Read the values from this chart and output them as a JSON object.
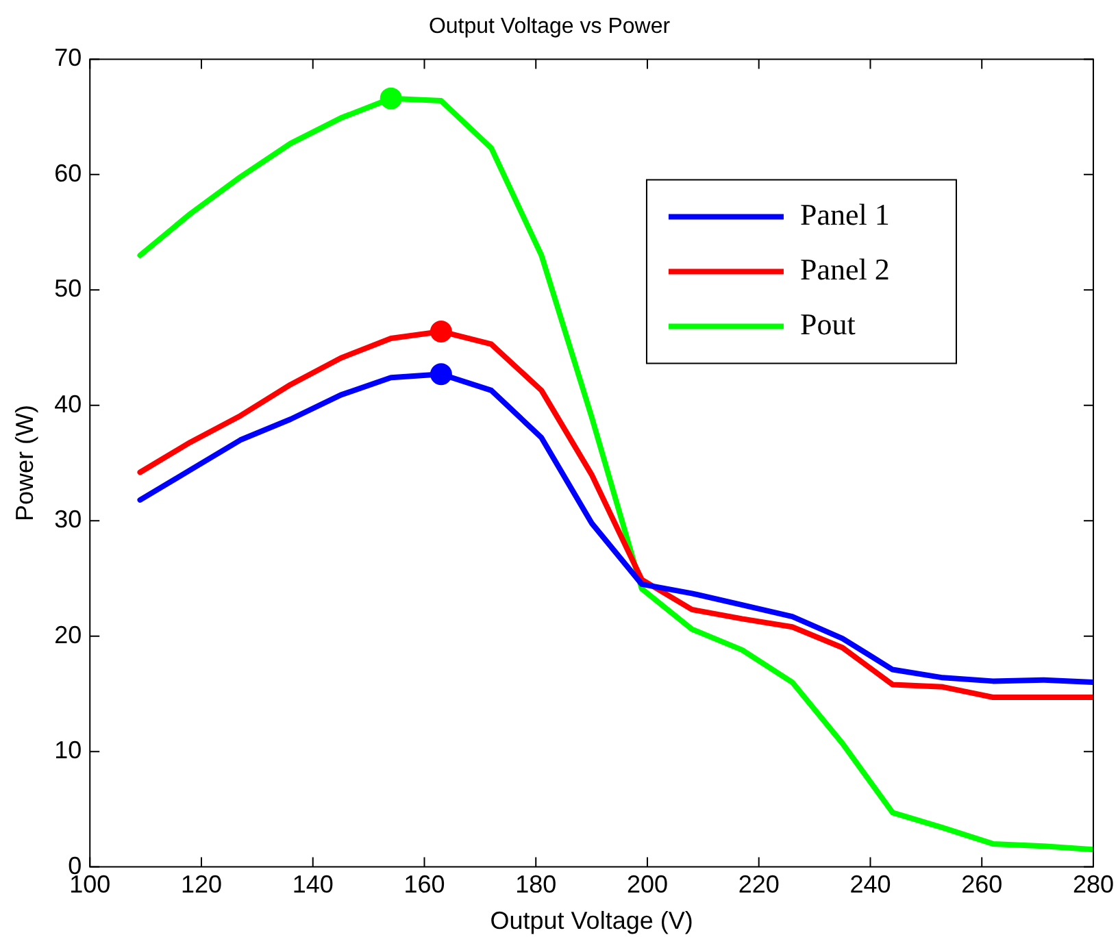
{
  "chart_data": {
    "type": "line",
    "title": "Output Voltage vs Power",
    "xlabel": "Output Voltage (V)",
    "ylabel": "Power (W)",
    "x": [
      109,
      118,
      127,
      136,
      145,
      154,
      163,
      172,
      181,
      190,
      199,
      208,
      217,
      226,
      235,
      244,
      253,
      262,
      271,
      280
    ],
    "xlim": [
      100,
      280
    ],
    "xticks": [
      100,
      120,
      140,
      160,
      180,
      200,
      220,
      240,
      260,
      280
    ],
    "ylim": [
      0,
      70
    ],
    "yticks": [
      0,
      10,
      20,
      30,
      40,
      50,
      60,
      70
    ],
    "grid": false,
    "legend": "top right",
    "marker": "none",
    "line_style": "solid",
    "series": [
      {
        "name": "Panel 1",
        "color": "#0000ff",
        "values": [
          31.8,
          34.4,
          37.0,
          38.8,
          40.9,
          42.4,
          42.7,
          41.3,
          37.2,
          29.8,
          24.5,
          23.7,
          22.7,
          21.7,
          19.8,
          17.1,
          16.4,
          16.1,
          16.2,
          16.0
        ]
      },
      {
        "name": "Panel 2",
        "color": "#ff0000",
        "values": [
          34.2,
          36.8,
          39.1,
          41.8,
          44.1,
          45.8,
          46.4,
          45.3,
          41.3,
          34.0,
          24.9,
          22.3,
          21.5,
          20.8,
          19.0,
          15.8,
          15.6,
          14.7,
          14.7,
          14.7
        ]
      },
      {
        "name": "Pout",
        "color": "#00ff00",
        "values": [
          53.0,
          56.6,
          59.8,
          62.7,
          64.9,
          66.6,
          66.4,
          62.3,
          53.0,
          39.0,
          24.1,
          20.6,
          18.8,
          16.0,
          10.7,
          4.7,
          3.4,
          2.0,
          1.8,
          1.5
        ]
      },
      {
        "type": "scatter",
        "marker": "circle",
        "color": "#0000ff",
        "values": [
          null,
          null,
          null,
          null,
          null,
          null,
          42.7,
          null,
          null,
          null,
          null,
          null,
          null,
          null,
          null,
          null,
          null,
          null,
          null,
          null
        ]
      },
      {
        "type": "scatter",
        "marker": "circle",
        "color": "#ff0000",
        "values": [
          null,
          null,
          null,
          null,
          null,
          null,
          46.4,
          null,
          null,
          null,
          null,
          null,
          null,
          null,
          null,
          null,
          null,
          null,
          null,
          null
        ]
      },
      {
        "type": "scatter",
        "marker": "circle",
        "color": "#00ff00",
        "values": [
          null,
          null,
          null,
          null,
          null,
          66.6,
          null,
          null,
          null,
          null,
          null,
          null,
          null,
          null,
          null,
          null,
          null,
          null,
          null,
          null
        ]
      }
    ]
  }
}
